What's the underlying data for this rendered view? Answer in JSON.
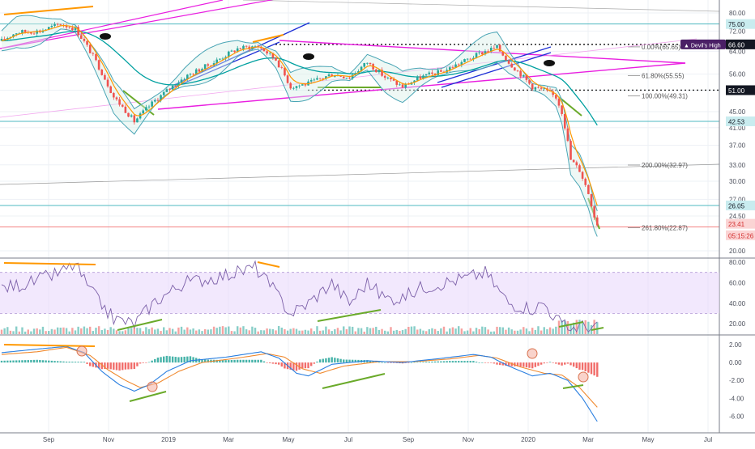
{
  "colors": {
    "background": "#ffffff",
    "grid": "#eef1f6",
    "axis_text": "#4a4e5a",
    "pane_border": "#7a7e88",
    "candle_up": "#26a69a",
    "candle_down": "#ef5350",
    "bollinger": "#4aa5b5",
    "ema_short": "#ff9800",
    "ema_long": "#00a0a0",
    "trend_magenta": "#e91ee0",
    "trend_blue": "#1e2fd6",
    "divergence_green": "#6aaa2a",
    "divergence_orange": "#ff9800",
    "hline_teal": "#4fb8c0",
    "hline_red": "#f05a5a",
    "rsi_line": "#7b5fa8",
    "rsi_band": "#ead9fb",
    "macd_line": "#2a7fe0",
    "signal_line": "#f08a30",
    "hist_pos": "#26a69a",
    "hist_neg": "#ef5350",
    "devils_badge": "#4a1f66",
    "label_dark": "#131722",
    "label_teal_bg": "#c9ecef",
    "label_red_bg": "#fbd4d4"
  },
  "chart_data": [
    {
      "type": "candlestick",
      "pane": "price",
      "scale": "log",
      "y_ticks": [
        80.0,
        72.0,
        64.0,
        56.0,
        51.0,
        45.0,
        41.0,
        37.0,
        33.0,
        30.0,
        27.0,
        24.5,
        20.0
      ],
      "y_tick_labels": [
        "80.00",
        "72.00",
        "64.00",
        "56.00",
        "51.00",
        "45.00",
        "41.00",
        "37.00",
        "33.00",
        "30.00",
        "27.00",
        "24.50",
        "20.00"
      ],
      "x_tick_labels": [
        "Sep",
        "Nov",
        "2019",
        "Mar",
        "May",
        "Jul",
        "Sep",
        "Nov",
        "2020",
        "Mar",
        "May",
        "Jul"
      ],
      "keypoints": [
        [
          0,
          68
        ],
        [
          5,
          71.5
        ],
        [
          13,
          72
        ],
        [
          20,
          75
        ],
        [
          25,
          73
        ],
        [
          30,
          64
        ],
        [
          38,
          49
        ],
        [
          45,
          42.5
        ],
        [
          52,
          48
        ],
        [
          62,
          55
        ],
        [
          72,
          60
        ],
        [
          80,
          65
        ],
        [
          87,
          66
        ],
        [
          93,
          61
        ],
        [
          98,
          52
        ],
        [
          104,
          53
        ],
        [
          112,
          56
        ],
        [
          118,
          55
        ],
        [
          124,
          60
        ],
        [
          130,
          55
        ],
        [
          136,
          52
        ],
        [
          142,
          55
        ],
        [
          150,
          57
        ],
        [
          158,
          61
        ],
        [
          164,
          64
        ],
        [
          168,
          65.5
        ],
        [
          172,
          60
        ],
        [
          175,
          57
        ],
        [
          180,
          52
        ],
        [
          184,
          51
        ],
        [
          188,
          49
        ],
        [
          190,
          45
        ],
        [
          193,
          34
        ],
        [
          196,
          32
        ],
        [
          199,
          28
        ],
        [
          201,
          24.5
        ],
        [
          202,
          23.41
        ]
      ],
      "price_labels": [
        {
          "text": "75.00",
          "value": 75.0,
          "style": "teal"
        },
        {
          "text": "66.60",
          "value": 66.6,
          "style": "dark"
        },
        {
          "text": "51.00",
          "value": 51.0,
          "style": "dark"
        },
        {
          "text": "42.53",
          "value": 42.53,
          "style": "teal"
        },
        {
          "text": "26.05",
          "value": 26.05,
          "style": "teal"
        },
        {
          "text": "23.41",
          "value": 23.41,
          "style": "red"
        },
        {
          "text": "05:15:26",
          "value": 21.9,
          "style": "red"
        }
      ],
      "badge": {
        "text": "Devil's High",
        "value": 66.6
      },
      "fib_levels": [
        {
          "label": "0.00%(65.65)",
          "value": 65.65
        },
        {
          "label": "61.80%(55.55)",
          "value": 55.55
        },
        {
          "label": "100.00%(49.31)",
          "value": 49.31
        },
        {
          "label": "200.00%(32.97)",
          "value": 32.97
        },
        {
          "label": "261.80%(22.87)",
          "value": 22.87
        }
      ]
    },
    {
      "type": "line",
      "pane": "rsi",
      "y_ticks": [
        80.0,
        60.0,
        40.0,
        20.0
      ],
      "y_tick_labels": [
        "80.00",
        "60.00",
        "40.00",
        "20.00"
      ],
      "band": [
        30,
        70
      ],
      "keypoints": [
        [
          0,
          55
        ],
        [
          10,
          60
        ],
        [
          20,
          70
        ],
        [
          25,
          78
        ],
        [
          30,
          52
        ],
        [
          38,
          25
        ],
        [
          45,
          20
        ],
        [
          52,
          42
        ],
        [
          62,
          60
        ],
        [
          72,
          65
        ],
        [
          80,
          70
        ],
        [
          86,
          75
        ],
        [
          93,
          50
        ],
        [
          98,
          30
        ],
        [
          104,
          40
        ],
        [
          112,
          60
        ],
        [
          118,
          40
        ],
        [
          124,
          60
        ],
        [
          130,
          45
        ],
        [
          136,
          45
        ],
        [
          142,
          55
        ],
        [
          150,
          60
        ],
        [
          158,
          65
        ],
        [
          164,
          70
        ],
        [
          172,
          40
        ],
        [
          180,
          35
        ],
        [
          184,
          40
        ],
        [
          188,
          25
        ],
        [
          192,
          15
        ],
        [
          196,
          18
        ],
        [
          202,
          16
        ]
      ]
    },
    {
      "type": "line",
      "pane": "macd",
      "y_ticks": [
        2.0,
        0.0,
        -2.0,
        -4.0,
        -6.0
      ],
      "y_tick_labels": [
        "2.00",
        "0.00",
        "-2.00",
        "-4.00",
        "-6.00"
      ],
      "macd_keypoints": [
        [
          0,
          1.1
        ],
        [
          12,
          1.5
        ],
        [
          22,
          1.8
        ],
        [
          28,
          1.1
        ],
        [
          34,
          -1.0
        ],
        [
          40,
          -2.5
        ],
        [
          45,
          -3.2
        ],
        [
          50,
          -2.5
        ],
        [
          56,
          -1.0
        ],
        [
          64,
          0.2
        ],
        [
          76,
          0.6
        ],
        [
          88,
          1.2
        ],
        [
          94,
          0.5
        ],
        [
          100,
          -1.2
        ],
        [
          104,
          -1.5
        ],
        [
          112,
          -0.2
        ],
        [
          124,
          0.2
        ],
        [
          136,
          0.0
        ],
        [
          150,
          0.5
        ],
        [
          160,
          0.9
        ],
        [
          166,
          0.6
        ],
        [
          172,
          -0.4
        ],
        [
          180,
          -1.5
        ],
        [
          186,
          -1.2
        ],
        [
          192,
          -2.0
        ],
        [
          197,
          -4.0
        ],
        [
          202,
          -6.6
        ]
      ],
      "signal_keypoints": [
        [
          0,
          0.9
        ],
        [
          12,
          1.2
        ],
        [
          22,
          1.7
        ],
        [
          30,
          0.8
        ],
        [
          36,
          -0.8
        ],
        [
          42,
          -2.0
        ],
        [
          47,
          -2.8
        ],
        [
          53,
          -2.3
        ],
        [
          60,
          -1.0
        ],
        [
          68,
          0.0
        ],
        [
          80,
          0.5
        ],
        [
          90,
          1.0
        ],
        [
          96,
          0.6
        ],
        [
          102,
          -0.7
        ],
        [
          108,
          -1.2
        ],
        [
          116,
          -0.4
        ],
        [
          128,
          0.1
        ],
        [
          140,
          0.1
        ],
        [
          152,
          0.4
        ],
        [
          162,
          0.8
        ],
        [
          168,
          0.5
        ],
        [
          176,
          -0.5
        ],
        [
          184,
          -1.2
        ],
        [
          190,
          -1.4
        ],
        [
          196,
          -2.8
        ],
        [
          202,
          -5.0
        ]
      ]
    }
  ]
}
